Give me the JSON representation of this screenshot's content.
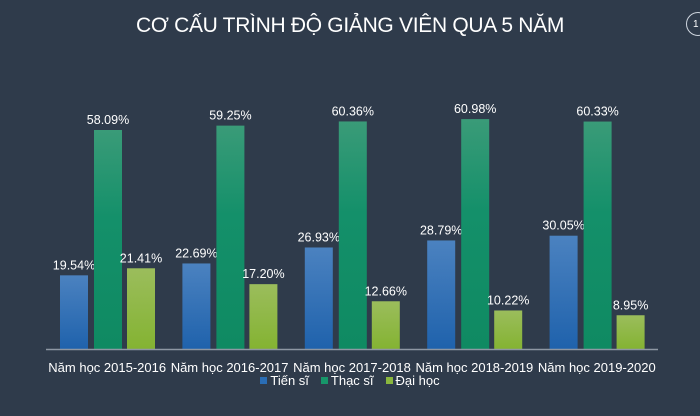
{
  "page_number": "1",
  "chart_data": {
    "type": "bar",
    "title": "CƠ CẤU TRÌNH ĐỘ GIẢNG VIÊN QUA 5 NĂM",
    "categories": [
      "Năm học 2015-2016",
      "Năm học 2016-2017",
      "Năm học 2017-2018",
      "Năm học 2018-2019",
      "Năm học 2019-2020"
    ],
    "series": [
      {
        "name": "Tiến sĩ",
        "color": "#2a6db5",
        "values": [
          19.54,
          22.69,
          26.93,
          28.79,
          30.05
        ]
      },
      {
        "name": "Thạc sĩ",
        "color": "#17966a",
        "values": [
          58.09,
          59.25,
          60.36,
          60.98,
          60.33
        ]
      },
      {
        "name": "Đại học",
        "color": "#8ab73e",
        "values": [
          21.41,
          17.2,
          12.66,
          10.22,
          8.95
        ]
      }
    ],
    "value_format": "percent, 2 decimals",
    "ylim": [
      0,
      65
    ],
    "grid": false,
    "legend": "bottom"
  }
}
